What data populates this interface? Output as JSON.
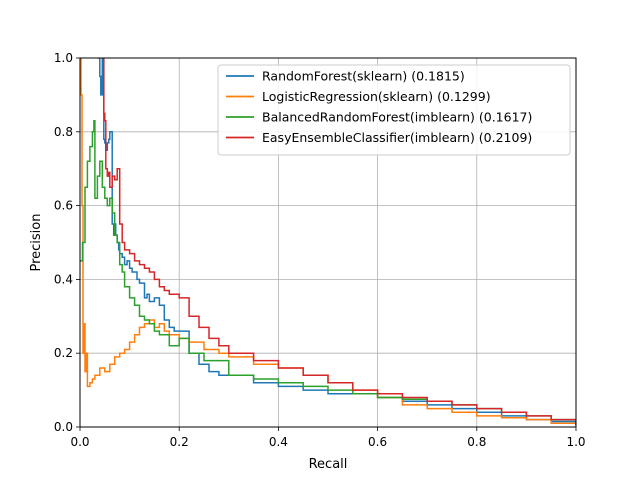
{
  "chart_data": {
    "type": "line",
    "title": "",
    "xlabel": "Recall",
    "ylabel": "Precision",
    "xlim": [
      0,
      1
    ],
    "ylim": [
      0,
      1
    ],
    "xticks": [
      "0.0",
      "0.2",
      "0.4",
      "0.6",
      "0.8",
      "1.0"
    ],
    "yticks": [
      "0.0",
      "0.2",
      "0.4",
      "0.6",
      "0.8",
      "1.0"
    ],
    "grid": true,
    "legend_position": "top-right",
    "series": [
      {
        "name": "RandomForest(sklearn) (0.1815)",
        "color": "#1f77b4",
        "x": [
          0.035,
          0.04,
          0.042,
          0.045,
          0.048,
          0.05,
          0.052,
          0.055,
          0.058,
          0.06,
          0.065,
          0.068,
          0.07,
          0.072,
          0.075,
          0.078,
          0.08,
          0.085,
          0.09,
          0.095,
          0.1,
          0.105,
          0.11,
          0.115,
          0.12,
          0.13,
          0.135,
          0.14,
          0.15,
          0.16,
          0.17,
          0.18,
          0.19,
          0.2,
          0.22,
          0.24,
          0.26,
          0.28,
          0.3,
          0.35,
          0.4,
          0.45,
          0.5,
          0.55,
          0.6,
          0.65,
          0.7,
          0.75,
          0.8,
          0.85,
          0.9,
          0.95,
          1.0
        ],
        "y": [
          1.0,
          0.95,
          0.9,
          1.0,
          0.78,
          0.77,
          0.75,
          0.77,
          0.78,
          0.8,
          0.55,
          0.52,
          0.55,
          0.52,
          0.5,
          0.48,
          0.47,
          0.46,
          0.44,
          0.45,
          0.43,
          0.42,
          0.42,
          0.4,
          0.39,
          0.35,
          0.36,
          0.34,
          0.35,
          0.33,
          0.29,
          0.27,
          0.26,
          0.26,
          0.2,
          0.17,
          0.15,
          0.14,
          0.14,
          0.12,
          0.11,
          0.1,
          0.09,
          0.09,
          0.08,
          0.07,
          0.06,
          0.05,
          0.04,
          0.03,
          0.02,
          0.015,
          0.005
        ]
      },
      {
        "name": "LogisticRegression(sklearn) (0.1299)",
        "color": "#ff7f0e",
        "x": [
          0.0,
          0.002,
          0.004,
          0.006,
          0.008,
          0.01,
          0.012,
          0.015,
          0.02,
          0.025,
          0.03,
          0.04,
          0.05,
          0.06,
          0.07,
          0.08,
          0.09,
          0.1,
          0.11,
          0.12,
          0.13,
          0.14,
          0.15,
          0.16,
          0.17,
          0.18,
          0.2,
          0.22,
          0.25,
          0.28,
          0.3,
          0.35,
          0.4,
          0.45,
          0.5,
          0.55,
          0.6,
          0.65,
          0.7,
          0.75,
          0.8,
          0.85,
          0.9,
          0.95,
          1.0
        ],
        "y": [
          1.0,
          0.9,
          0.6,
          0.2,
          0.28,
          0.15,
          0.2,
          0.11,
          0.12,
          0.13,
          0.14,
          0.16,
          0.15,
          0.17,
          0.19,
          0.2,
          0.21,
          0.23,
          0.25,
          0.27,
          0.28,
          0.29,
          0.27,
          0.28,
          0.26,
          0.25,
          0.24,
          0.23,
          0.21,
          0.2,
          0.19,
          0.17,
          0.16,
          0.14,
          0.12,
          0.1,
          0.08,
          0.06,
          0.05,
          0.04,
          0.03,
          0.025,
          0.02,
          0.01,
          0.005
        ]
      },
      {
        "name": "BalancedRandomForest(imblearn) (0.1617)",
        "color": "#2ca02c",
        "x": [
          0.0,
          0.005,
          0.01,
          0.015,
          0.02,
          0.025,
          0.028,
          0.03,
          0.035,
          0.04,
          0.045,
          0.05,
          0.055,
          0.06,
          0.065,
          0.07,
          0.075,
          0.08,
          0.085,
          0.09,
          0.1,
          0.11,
          0.12,
          0.13,
          0.14,
          0.15,
          0.16,
          0.18,
          0.2,
          0.22,
          0.25,
          0.3,
          0.35,
          0.4,
          0.45,
          0.5,
          0.55,
          0.6,
          0.65,
          0.7,
          0.75,
          0.8,
          0.85,
          0.9,
          0.95,
          1.0
        ],
        "y": [
          0.45,
          0.5,
          0.65,
          0.72,
          0.76,
          0.8,
          0.83,
          0.62,
          0.68,
          0.72,
          0.65,
          0.62,
          0.6,
          0.62,
          0.58,
          0.52,
          0.5,
          0.44,
          0.42,
          0.38,
          0.35,
          0.33,
          0.3,
          0.29,
          0.28,
          0.26,
          0.25,
          0.22,
          0.24,
          0.2,
          0.18,
          0.14,
          0.13,
          0.12,
          0.11,
          0.1,
          0.09,
          0.08,
          0.075,
          0.07,
          0.06,
          0.05,
          0.04,
          0.03,
          0.02,
          0.005
        ]
      },
      {
        "name": "EasyEnsembleClassifier(imblearn) (0.2109)",
        "color": "#d62728",
        "x": [
          0.045,
          0.048,
          0.05,
          0.052,
          0.055,
          0.058,
          0.06,
          0.065,
          0.07,
          0.075,
          0.08,
          0.085,
          0.09,
          0.1,
          0.11,
          0.12,
          0.13,
          0.14,
          0.15,
          0.16,
          0.17,
          0.18,
          0.2,
          0.22,
          0.24,
          0.26,
          0.28,
          0.3,
          0.35,
          0.4,
          0.45,
          0.5,
          0.55,
          0.6,
          0.65,
          0.7,
          0.75,
          0.8,
          0.85,
          0.9,
          0.95,
          1.0
        ],
        "y": [
          1.0,
          0.85,
          0.83,
          0.7,
          0.68,
          0.69,
          0.65,
          0.68,
          0.67,
          0.7,
          0.55,
          0.5,
          0.48,
          0.47,
          0.45,
          0.44,
          0.43,
          0.42,
          0.4,
          0.38,
          0.37,
          0.36,
          0.35,
          0.3,
          0.27,
          0.24,
          0.22,
          0.2,
          0.18,
          0.16,
          0.14,
          0.12,
          0.1,
          0.09,
          0.08,
          0.07,
          0.06,
          0.05,
          0.04,
          0.03,
          0.02,
          0.005
        ]
      }
    ]
  }
}
